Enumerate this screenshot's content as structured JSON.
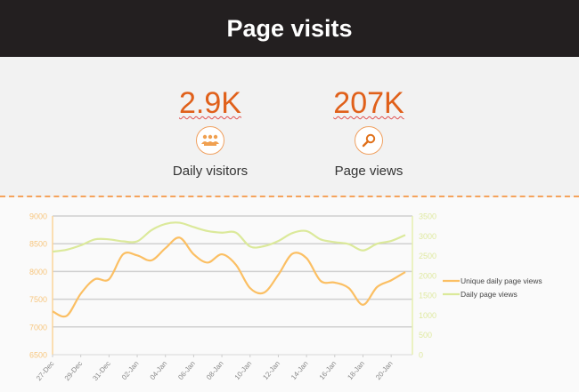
{
  "header": {
    "title": "Page visits"
  },
  "stats": [
    {
      "value": "2.9K",
      "label": "Daily visitors",
      "icon": "users-icon"
    },
    {
      "value": "207K",
      "label": "Page views",
      "icon": "magnifier-icon"
    }
  ],
  "colors": {
    "accent": "#e0601a",
    "unique": "#fbbf63",
    "daily": "#dbe99a"
  },
  "chart_data": {
    "type": "line",
    "x": [
      "27-Dec",
      "28-Dec",
      "29-Dec",
      "30-Dec",
      "31-Dec",
      "01-Jan",
      "02-Jan",
      "03-Jan",
      "04-Jan",
      "05-Jan",
      "06-Jan",
      "07-Jan",
      "08-Jan",
      "09-Jan",
      "10-Jan",
      "11-Jan",
      "12-Jan",
      "13-Jan",
      "14-Jan",
      "15-Jan",
      "16-Jan",
      "17-Jan",
      "18-Jan",
      "19-Jan",
      "20-Jan",
      "21-Jan"
    ],
    "xticks": [
      "27-Dec",
      "29-Dec",
      "31-Dec",
      "02-Jan",
      "04-Jan",
      "06-Jan",
      "08-Jan",
      "10-Jan",
      "12-Jan",
      "14-Jan",
      "16-Jan",
      "18-Jan",
      "20-Jan"
    ],
    "series": [
      {
        "name": "Unique daily page views",
        "axis": "left",
        "values": [
          7280,
          7200,
          7600,
          7860,
          7860,
          8310,
          8290,
          8200,
          8420,
          8610,
          8310,
          8160,
          8310,
          8120,
          7700,
          7620,
          7940,
          8320,
          8240,
          7830,
          7800,
          7700,
          7400,
          7720,
          7840,
          7990
        ]
      },
      {
        "name": "Daily page views",
        "axis": "right",
        "values": [
          2600,
          2650,
          2760,
          2910,
          2910,
          2860,
          2860,
          3140,
          3300,
          3330,
          3220,
          3120,
          3080,
          3080,
          2730,
          2740,
          2870,
          3070,
          3120,
          2910,
          2840,
          2790,
          2630,
          2800,
          2870,
          3020
        ]
      }
    ],
    "yleft": {
      "range": [
        6500,
        9000
      ],
      "ticks": [
        "9000",
        "8500",
        "8000",
        "7500",
        "7000",
        "6500"
      ]
    },
    "yright": {
      "range": [
        0,
        3500
      ],
      "ticks": [
        "3500",
        "3000",
        "2500",
        "2000",
        "1500",
        "1000",
        "500",
        "0"
      ]
    },
    "grid": true,
    "legend": "right"
  }
}
